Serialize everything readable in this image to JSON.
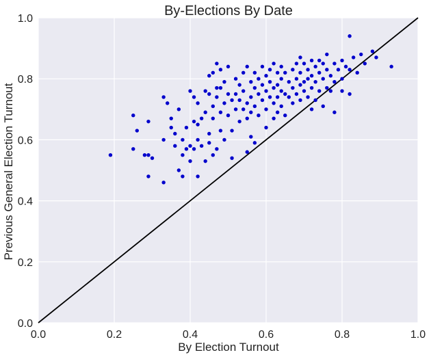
{
  "chart_data": {
    "type": "scatter",
    "title": "By-Elections By Date",
    "xlabel": "By Election Turnout",
    "ylabel": "Previous General Election Turnout",
    "xlim": [
      0.0,
      1.0
    ],
    "ylim": [
      0.0,
      1.0
    ],
    "xticks": [
      "0.0",
      "0.2",
      "0.4",
      "0.6",
      "0.8",
      "1.0"
    ],
    "yticks": [
      "0.0",
      "0.2",
      "0.4",
      "0.6",
      "0.8",
      "1.0"
    ],
    "grid": true,
    "colors": {
      "background": "#eaeaf2",
      "grid": "#ffffff",
      "points": "#0000cc",
      "reference_line": "#000000"
    },
    "reference_line": {
      "x": [
        0.0,
        1.0
      ],
      "y": [
        0.0,
        1.0
      ]
    },
    "points": [
      [
        0.19,
        0.55
      ],
      [
        0.25,
        0.57
      ],
      [
        0.25,
        0.68
      ],
      [
        0.26,
        0.63
      ],
      [
        0.28,
        0.55
      ],
      [
        0.29,
        0.55
      ],
      [
        0.3,
        0.54
      ],
      [
        0.29,
        0.48
      ],
      [
        0.29,
        0.66
      ],
      [
        0.33,
        0.74
      ],
      [
        0.33,
        0.6
      ],
      [
        0.33,
        0.46
      ],
      [
        0.34,
        0.72
      ],
      [
        0.35,
        0.64
      ],
      [
        0.35,
        0.67
      ],
      [
        0.36,
        0.58
      ],
      [
        0.36,
        0.62
      ],
      [
        0.37,
        0.7
      ],
      [
        0.37,
        0.5
      ],
      [
        0.38,
        0.55
      ],
      [
        0.38,
        0.48
      ],
      [
        0.38,
        0.6
      ],
      [
        0.39,
        0.57
      ],
      [
        0.39,
        0.64
      ],
      [
        0.4,
        0.76
      ],
      [
        0.4,
        0.58
      ],
      [
        0.4,
        0.53
      ],
      [
        0.41,
        0.66
      ],
      [
        0.41,
        0.74
      ],
      [
        0.41,
        0.57
      ],
      [
        0.42,
        0.65
      ],
      [
        0.42,
        0.48
      ],
      [
        0.42,
        0.6
      ],
      [
        0.42,
        0.72
      ],
      [
        0.43,
        0.67
      ],
      [
        0.43,
        0.58
      ],
      [
        0.44,
        0.53
      ],
      [
        0.44,
        0.69
      ],
      [
        0.44,
        0.76
      ],
      [
        0.45,
        0.75
      ],
      [
        0.45,
        0.81
      ],
      [
        0.45,
        0.62
      ],
      [
        0.45,
        0.59
      ],
      [
        0.46,
        0.82
      ],
      [
        0.46,
        0.71
      ],
      [
        0.46,
        0.67
      ],
      [
        0.46,
        0.55
      ],
      [
        0.47,
        0.85
      ],
      [
        0.47,
        0.77
      ],
      [
        0.47,
        0.74
      ],
      [
        0.47,
        0.57
      ],
      [
        0.48,
        0.83
      ],
      [
        0.48,
        0.69
      ],
      [
        0.48,
        0.63
      ],
      [
        0.48,
        0.77
      ],
      [
        0.49,
        0.79
      ],
      [
        0.49,
        0.72
      ],
      [
        0.49,
        0.6
      ],
      [
        0.5,
        0.84
      ],
      [
        0.5,
        0.75
      ],
      [
        0.5,
        0.68
      ],
      [
        0.51,
        0.73
      ],
      [
        0.51,
        0.63
      ],
      [
        0.51,
        0.54
      ],
      [
        0.52,
        0.8
      ],
      [
        0.52,
        0.75
      ],
      [
        0.52,
        0.7
      ],
      [
        0.53,
        0.78
      ],
      [
        0.53,
        0.73
      ],
      [
        0.53,
        0.66
      ],
      [
        0.54,
        0.82
      ],
      [
        0.54,
        0.76
      ],
      [
        0.54,
        0.7
      ],
      [
        0.55,
        0.84
      ],
      [
        0.55,
        0.72
      ],
      [
        0.55,
        0.67
      ],
      [
        0.55,
        0.56
      ],
      [
        0.56,
        0.79
      ],
      [
        0.56,
        0.74
      ],
      [
        0.56,
        0.69
      ],
      [
        0.56,
        0.61
      ],
      [
        0.57,
        0.82
      ],
      [
        0.57,
        0.77
      ],
      [
        0.57,
        0.71
      ],
      [
        0.57,
        0.59
      ],
      [
        0.58,
        0.8
      ],
      [
        0.58,
        0.75
      ],
      [
        0.58,
        0.68
      ],
      [
        0.59,
        0.84
      ],
      [
        0.59,
        0.78
      ],
      [
        0.59,
        0.73
      ],
      [
        0.6,
        0.81
      ],
      [
        0.6,
        0.76
      ],
      [
        0.6,
        0.7
      ],
      [
        0.6,
        0.64
      ],
      [
        0.61,
        0.83
      ],
      [
        0.61,
        0.79
      ],
      [
        0.61,
        0.74
      ],
      [
        0.62,
        0.85
      ],
      [
        0.62,
        0.77
      ],
      [
        0.62,
        0.72
      ],
      [
        0.62,
        0.67
      ],
      [
        0.63,
        0.82
      ],
      [
        0.63,
        0.78
      ],
      [
        0.63,
        0.74
      ],
      [
        0.63,
        0.69
      ],
      [
        0.64,
        0.84
      ],
      [
        0.64,
        0.8
      ],
      [
        0.64,
        0.76
      ],
      [
        0.64,
        0.71
      ],
      [
        0.65,
        0.82
      ],
      [
        0.65,
        0.75
      ],
      [
        0.65,
        0.68
      ],
      [
        0.66,
        0.79
      ],
      [
        0.66,
        0.74
      ],
      [
        0.67,
        0.83
      ],
      [
        0.67,
        0.77
      ],
      [
        0.67,
        0.72
      ],
      [
        0.68,
        0.85
      ],
      [
        0.68,
        0.8
      ],
      [
        0.68,
        0.75
      ],
      [
        0.69,
        0.87
      ],
      [
        0.69,
        0.82
      ],
      [
        0.69,
        0.78
      ],
      [
        0.69,
        0.73
      ],
      [
        0.7,
        0.85
      ],
      [
        0.7,
        0.79
      ],
      [
        0.7,
        0.76
      ],
      [
        0.71,
        0.83
      ],
      [
        0.71,
        0.8
      ],
      [
        0.71,
        0.74
      ],
      [
        0.72,
        0.86
      ],
      [
        0.72,
        0.81
      ],
      [
        0.72,
        0.77
      ],
      [
        0.72,
        0.7
      ],
      [
        0.73,
        0.84
      ],
      [
        0.73,
        0.79
      ],
      [
        0.73,
        0.73
      ],
      [
        0.74,
        0.86
      ],
      [
        0.74,
        0.82
      ],
      [
        0.74,
        0.76
      ],
      [
        0.75,
        0.85
      ],
      [
        0.75,
        0.8
      ],
      [
        0.75,
        0.71
      ],
      [
        0.76,
        0.88
      ],
      [
        0.76,
        0.83
      ],
      [
        0.76,
        0.77
      ],
      [
        0.77,
        0.81
      ],
      [
        0.77,
        0.76
      ],
      [
        0.78,
        0.85
      ],
      [
        0.78,
        0.79
      ],
      [
        0.78,
        0.69
      ],
      [
        0.79,
        0.83
      ],
      [
        0.8,
        0.86
      ],
      [
        0.8,
        0.8
      ],
      [
        0.8,
        0.76
      ],
      [
        0.81,
        0.84
      ],
      [
        0.82,
        0.94
      ],
      [
        0.82,
        0.83
      ],
      [
        0.82,
        0.75
      ],
      [
        0.83,
        0.87
      ],
      [
        0.84,
        0.82
      ],
      [
        0.85,
        0.88
      ],
      [
        0.86,
        0.85
      ],
      [
        0.88,
        0.89
      ],
      [
        0.89,
        0.87
      ],
      [
        0.93,
        0.84
      ]
    ]
  }
}
